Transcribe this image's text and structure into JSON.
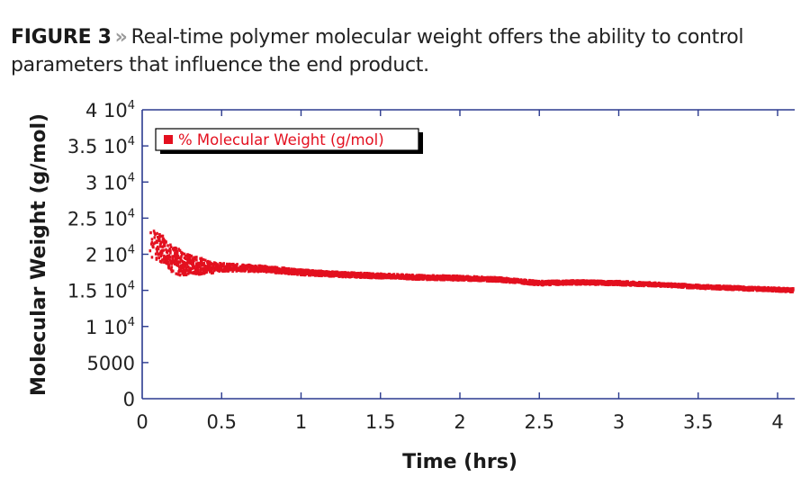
{
  "caption": {
    "figure_label": "FIGURE 3",
    "separator": "»",
    "text": "Real-time polymer molecular weight offers the ability to control parameters that influence the end product."
  },
  "colors": {
    "axis": "#2b3a8f",
    "series": "#e3101f",
    "text": "#222222"
  },
  "chart_data": {
    "type": "scatter",
    "title": "",
    "xlabel": "Time (hrs)",
    "ylabel": "Molecular Weight (g/mol)",
    "xlim": [
      0,
      4.1
    ],
    "ylim": [
      0,
      40000
    ],
    "grid": false,
    "legend_position": "upper-left",
    "x_ticks": [
      0,
      0.5,
      1,
      1.5,
      2,
      2.5,
      3,
      3.5,
      4
    ],
    "x_tick_labels": [
      "0",
      "0.5",
      "1",
      "1.5",
      "2",
      "2.5",
      "3",
      "3.5",
      "4"
    ],
    "y_ticks": [
      0,
      5000,
      10000,
      15000,
      20000,
      25000,
      30000,
      35000,
      40000
    ],
    "y_tick_labels": [
      "0",
      "5000",
      "1 10^4",
      "1.5 10^4",
      "2 10^4",
      "2.5 10^4",
      "3 10^4",
      "3.5 10^4",
      "4 10^4"
    ],
    "series": [
      {
        "name": "% Molecular Weight (g/mol)",
        "color": "#e3101f",
        "x": [
          0.05,
          0.1,
          0.15,
          0.2,
          0.25,
          0.3,
          0.4,
          0.5,
          0.75,
          1.0,
          1.25,
          1.5,
          1.75,
          2.0,
          2.25,
          2.5,
          2.75,
          3.0,
          3.25,
          3.5,
          3.75,
          4.0,
          4.1
        ],
        "values": [
          21500,
          21000,
          20500,
          19000,
          18800,
          18500,
          18300,
          18200,
          18000,
          17500,
          17200,
          17000,
          16800,
          16700,
          16500,
          16000,
          16100,
          16000,
          15800,
          15500,
          15300,
          15100,
          15000
        ],
        "spread": [
          2500,
          2500,
          2200,
          2500,
          2200,
          1800,
          1200,
          900,
          700,
          600,
          550,
          500,
          500,
          500,
          450,
          450,
          450,
          450,
          400,
          400,
          400,
          400,
          400
        ]
      }
    ]
  }
}
